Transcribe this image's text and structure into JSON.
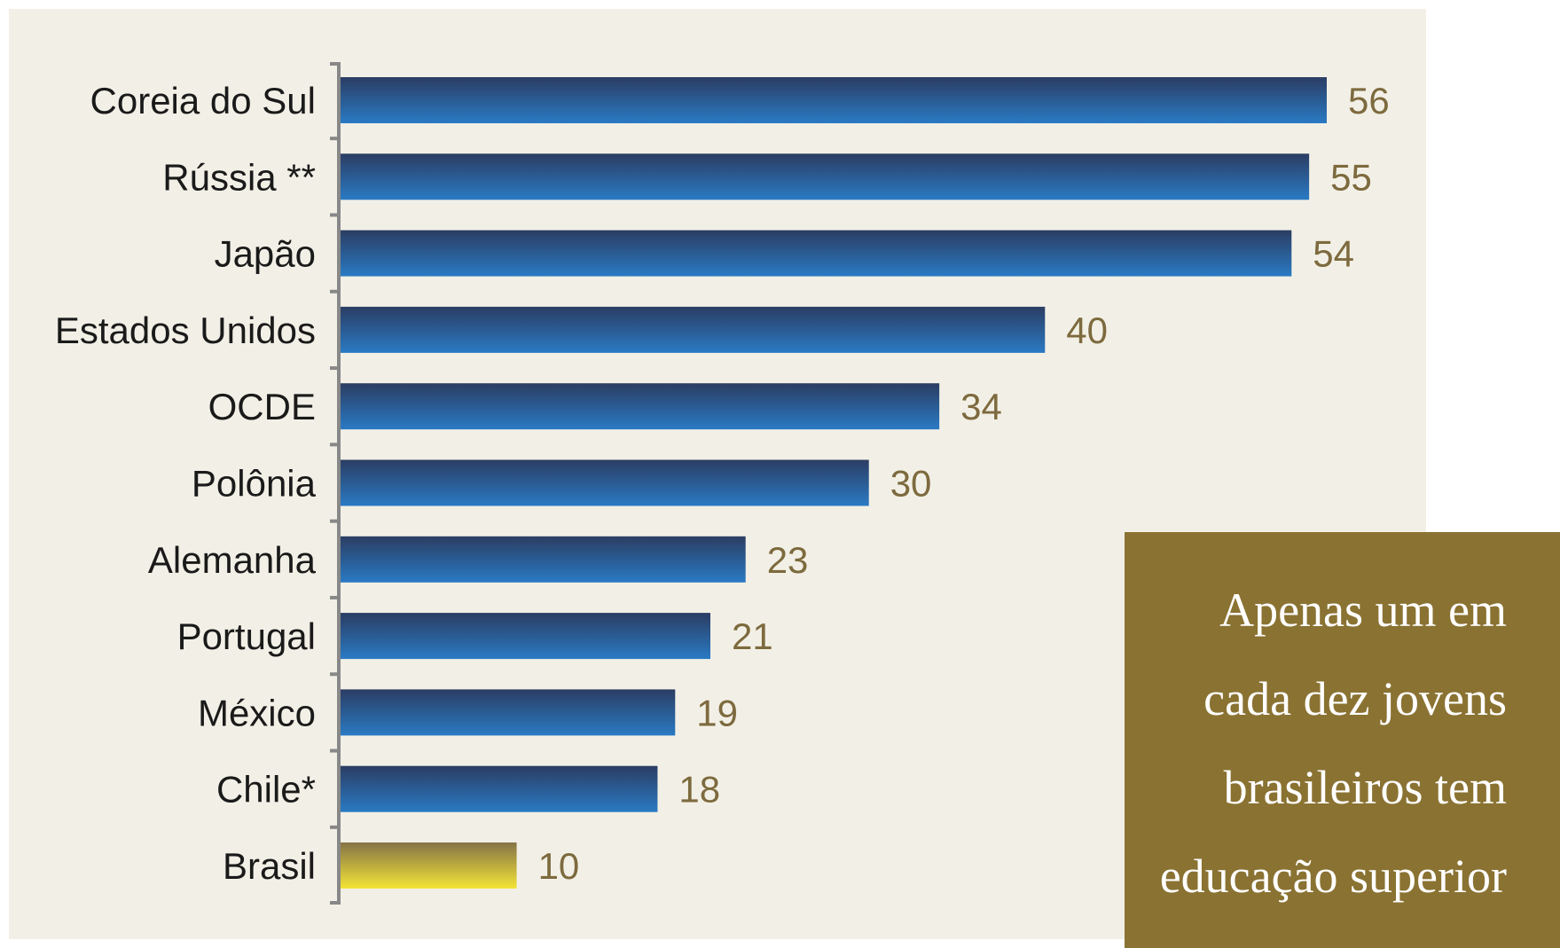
{
  "chart_data": {
    "type": "bar",
    "orientation": "horizontal",
    "categories": [
      "Coreia do Sul",
      "Rússia **",
      "Japão",
      "Estados Unidos",
      "OCDE",
      "Polônia",
      "Alemanha",
      "Portugal",
      "México",
      "Chile*",
      "Brasil"
    ],
    "values": [
      56,
      55,
      54,
      40,
      34,
      30,
      23,
      21,
      19,
      18,
      10
    ],
    "value_labels": [
      "56",
      "55",
      "54",
      "40",
      "34",
      "30",
      "23",
      "21",
      "19",
      "18",
      "10"
    ],
    "highlight_category": "Brasil",
    "colors": {
      "bar_top": "#2b3d63",
      "bar_bottom": "#2a7ac4",
      "highlight_top": "#857446",
      "highlight_bottom": "#f3e437",
      "value_text": "#7d6a3e",
      "axis": "#888888"
    },
    "xlim": [
      0,
      56
    ],
    "grid": false,
    "legend": "none"
  },
  "callout": {
    "lines": [
      "Apenas um em",
      "cada dez jovens",
      "brasileiros tem",
      "educação superior"
    ]
  },
  "colors": {
    "background": "#f2f0e6",
    "callout_background": "#8a7232"
  }
}
